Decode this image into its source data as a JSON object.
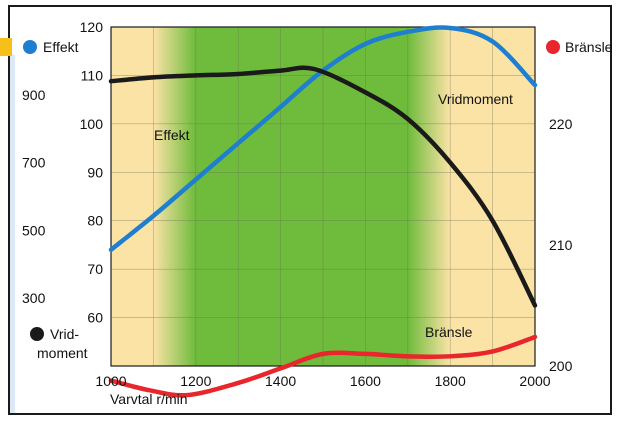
{
  "chart_data": {
    "type": "line",
    "x_axis": {
      "label": "Varvtal r/min",
      "ticks": [
        1000,
        1200,
        1400,
        1600,
        1800,
        2000
      ],
      "range": [
        1000,
        2000
      ]
    },
    "power_axis": {
      "ticks": [
        60,
        70,
        80,
        90,
        100,
        110,
        120
      ],
      "range": [
        50,
        120
      ]
    },
    "torque_axis": {
      "ticks": [
        300,
        500,
        700,
        900
      ],
      "range": [
        100,
        1100
      ]
    },
    "fuel_axis": {
      "ticks": [
        200,
        210,
        220
      ],
      "range": [
        200,
        228
      ]
    },
    "legend": [
      {
        "label": "Effekt",
        "color": "#1e7fd0"
      },
      {
        "label": "Bränsle",
        "color": "#e8262b"
      },
      {
        "label_line1": "Vrid-",
        "label_line2": "moment",
        "color": "#1a1a1a"
      }
    ],
    "annotations": {
      "power": "Effekt",
      "torque": "Vridmoment",
      "fuel": "Bränsle"
    },
    "shaded_band": {
      "from": 1200,
      "to": 1700,
      "fade_from": 1100,
      "fade_to": 1800
    },
    "series": [
      {
        "name": "Effekt",
        "axis": "power",
        "color": "#1e7fd0",
        "points": [
          [
            1000,
            74
          ],
          [
            1100,
            81
          ],
          [
            1200,
            88.5
          ],
          [
            1300,
            96
          ],
          [
            1400,
            103.5
          ],
          [
            1500,
            111
          ],
          [
            1600,
            116.5
          ],
          [
            1700,
            119
          ],
          [
            1800,
            119.8
          ],
          [
            1900,
            117
          ],
          [
            2000,
            108
          ]
        ]
      },
      {
        "name": "Vridmoment",
        "axis": "power",
        "color": "#1a1a1a",
        "points": [
          [
            1000,
            108.8
          ],
          [
            1100,
            109.6
          ],
          [
            1200,
            110
          ],
          [
            1300,
            110.3
          ],
          [
            1400,
            111
          ],
          [
            1480,
            111.3
          ],
          [
            1600,
            106.5
          ],
          [
            1700,
            101
          ],
          [
            1800,
            92
          ],
          [
            1900,
            80
          ],
          [
            2000,
            62.5
          ]
        ]
      },
      {
        "name": "Bränsle",
        "axis": "power",
        "color": "#e8262b",
        "points": [
          [
            1000,
            47
          ],
          [
            1090,
            45
          ],
          [
            1180,
            44
          ],
          [
            1300,
            46.5
          ],
          [
            1400,
            49.5
          ],
          [
            1500,
            52.5
          ],
          [
            1600,
            52.5
          ],
          [
            1700,
            52
          ],
          [
            1800,
            52
          ],
          [
            1900,
            53
          ],
          [
            2000,
            56
          ]
        ]
      }
    ]
  }
}
